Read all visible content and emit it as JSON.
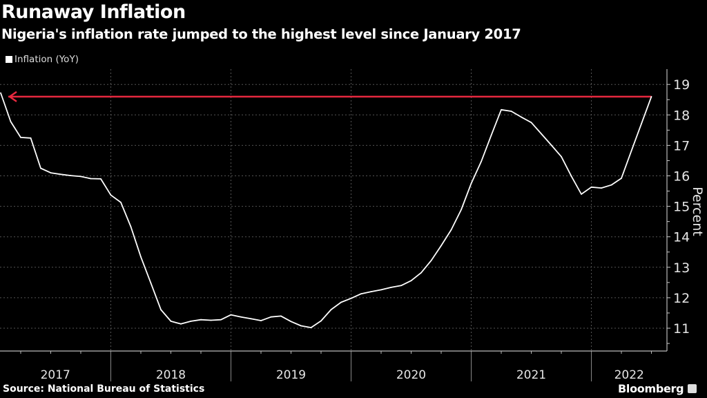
{
  "chart_data": {
    "type": "line",
    "title": "Runaway Inflation",
    "subtitle": "Nigeria's inflation rate jumped to the highest level since January 2017",
    "ylabel": "Percent",
    "xlabel": "",
    "ylim": [
      10.3,
      19.4
    ],
    "yticks": [
      11,
      12,
      13,
      14,
      15,
      16,
      17,
      18,
      19
    ],
    "year_labels": [
      "2017",
      "2018",
      "2019",
      "2020",
      "2021",
      "2022"
    ],
    "grid": true,
    "legend_position": "top-left",
    "series": [
      {
        "name": "Inflation (YoY)",
        "color": "#ffffff",
        "start": "2017-01",
        "frequency": "monthly",
        "values": [
          18.72,
          17.78,
          17.26,
          17.24,
          16.25,
          16.1,
          16.05,
          16.01,
          15.98,
          15.91,
          15.9,
          15.37,
          15.13,
          14.33,
          13.34,
          12.48,
          11.61,
          11.23,
          11.14,
          11.23,
          11.28,
          11.26,
          11.28,
          11.44,
          11.37,
          11.31,
          11.25,
          11.37,
          11.4,
          11.22,
          11.08,
          11.02,
          11.24,
          11.61,
          11.85,
          11.98,
          12.13,
          12.2,
          12.26,
          12.34,
          12.4,
          12.56,
          12.82,
          13.22,
          13.71,
          14.23,
          14.89,
          15.75,
          16.47,
          17.33,
          18.17,
          18.12,
          17.93,
          17.75,
          17.38,
          17.01,
          16.63,
          15.99,
          15.4,
          15.63,
          15.6,
          15.7,
          15.92,
          16.82,
          17.71,
          18.6
        ]
      }
    ],
    "annotations": [
      {
        "type": "arrow",
        "value": 18.6,
        "from": "2022-06",
        "to": "2017-01",
        "color": "#e8283f"
      }
    ],
    "source": "Source: National Bureau of Statistics",
    "brand": "Bloomberg"
  }
}
